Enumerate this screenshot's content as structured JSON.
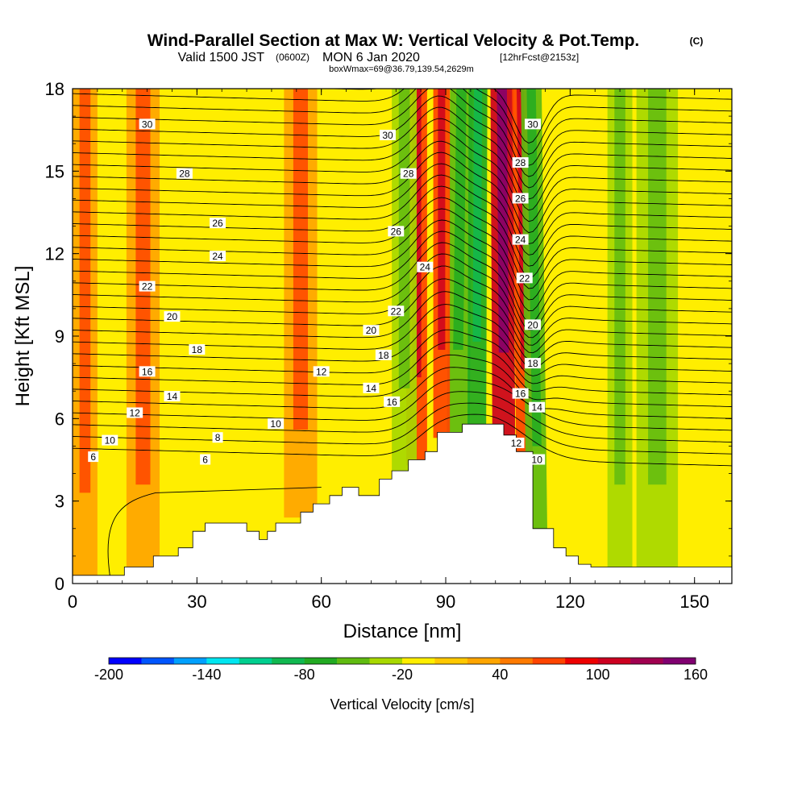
{
  "header": {
    "title_main": "Wind-Parallel Section at Max W: Vertical Velocity & Pot.Temp.",
    "title_mark": "(C)",
    "valid_a": "Valid 1500 JST",
    "valid_b": "(0600Z)",
    "valid_c": "MON 6 Jan 2020",
    "valid_d": "[12hrFcst@2153z]",
    "boxline": "boxWmax=69@36.79,139.54,2629m"
  },
  "chart_data": {
    "type": "heatmap",
    "xlabel": "Distance [nm]",
    "ylabel": "Height [Kft MSL]",
    "xlim": [
      0,
      159
    ],
    "ylim": [
      0,
      18
    ],
    "x_ticks": [
      0,
      30,
      60,
      90,
      120,
      150
    ],
    "y_ticks": [
      0,
      3,
      6,
      9,
      12,
      15,
      18
    ],
    "terrain": {
      "x": [
        0,
        7.5,
        12.5,
        12.5,
        19.5,
        19.5,
        25.5,
        25.5,
        29,
        29,
        32,
        32,
        42,
        42,
        45,
        45,
        47,
        47,
        49,
        49,
        55,
        55,
        58,
        58,
        62,
        62,
        65,
        65,
        69,
        69,
        74,
        74,
        77,
        77,
        81,
        81,
        85,
        85,
        88,
        88,
        94,
        94,
        104,
        104,
        107,
        107,
        111,
        111,
        116,
        116,
        119,
        119,
        122,
        122,
        125,
        125,
        131,
        131,
        159
      ],
      "height": [
        0.3,
        0.3,
        0.3,
        0.6,
        0.6,
        1.0,
        1.0,
        1.3,
        1.3,
        1.9,
        1.9,
        2.2,
        2.2,
        1.9,
        1.9,
        1.6,
        1.6,
        1.9,
        1.9,
        2.2,
        2.2,
        2.6,
        2.6,
        2.9,
        2.9,
        3.2,
        3.2,
        3.5,
        3.5,
        3.2,
        3.2,
        3.8,
        3.8,
        4.1,
        4.1,
        4.5,
        4.5,
        4.8,
        4.8,
        5.5,
        5.5,
        5.8,
        5.8,
        5.4,
        5.4,
        4.8,
        4.8,
        2.0,
        2.0,
        1.3,
        1.3,
        1.0,
        1.0,
        0.7,
        0.7,
        0.6,
        0.6,
        0.6,
        0.6
      ]
    },
    "w_bands": [
      {
        "x": 93,
        "width": 5.5,
        "w": -60
      },
      {
        "x": 97.5,
        "width": 4.5,
        "w": -80
      },
      {
        "x": 104,
        "width": 5.5,
        "w": 100
      },
      {
        "x": 109,
        "width": 4,
        "w": 60
      },
      {
        "x": 112,
        "width": 5,
        "w": -60
      },
      {
        "x": 83,
        "width": 5,
        "w": 60
      },
      {
        "x": 89,
        "width": 4,
        "w": 70
      },
      {
        "x": 80,
        "width": 6,
        "w": -30
      },
      {
        "x": 132,
        "width": 6,
        "w": -40
      },
      {
        "x": 141,
        "width": 10,
        "w": -30
      },
      {
        "x": 17,
        "width": 8,
        "w": 30
      },
      {
        "x": 55,
        "width": 8,
        "w": 30
      },
      {
        "x": 3,
        "width": 6,
        "w": 25
      }
    ],
    "theta_contours": [
      6,
      8,
      10,
      12,
      14,
      16,
      18,
      20,
      22,
      24,
      26,
      28,
      30
    ],
    "contour_labels": [
      "6",
      "10",
      "12",
      "14",
      "16",
      "18",
      "20",
      "22",
      "24",
      "26",
      "28",
      "30",
      "30",
      "28",
      "26",
      "24",
      "22",
      "20",
      "18",
      "16",
      "14",
      "12",
      "10",
      "8",
      "6",
      "10",
      "12",
      "14",
      "16",
      "18",
      "20",
      "22",
      "24",
      "26",
      "28",
      "30"
    ],
    "colorbar": {
      "label": "Vertical Velocity [cm/s]",
      "min": -200,
      "max": 160,
      "step": 20,
      "tick_labels": [
        "-200",
        "-140",
        "-80",
        "-20",
        "40",
        "100",
        "160"
      ],
      "colors": [
        "#0000ff",
        "#0055ff",
        "#00a0ff",
        "#00e6f0",
        "#00cf8f",
        "#10b850",
        "#22aa22",
        "#60bb10",
        "#a8d800",
        "#ffee00",
        "#ffc800",
        "#ffa500",
        "#ff7a00",
        "#ff4400",
        "#ee0000",
        "#cc0020",
        "#a00050",
        "#800070"
      ]
    }
  }
}
